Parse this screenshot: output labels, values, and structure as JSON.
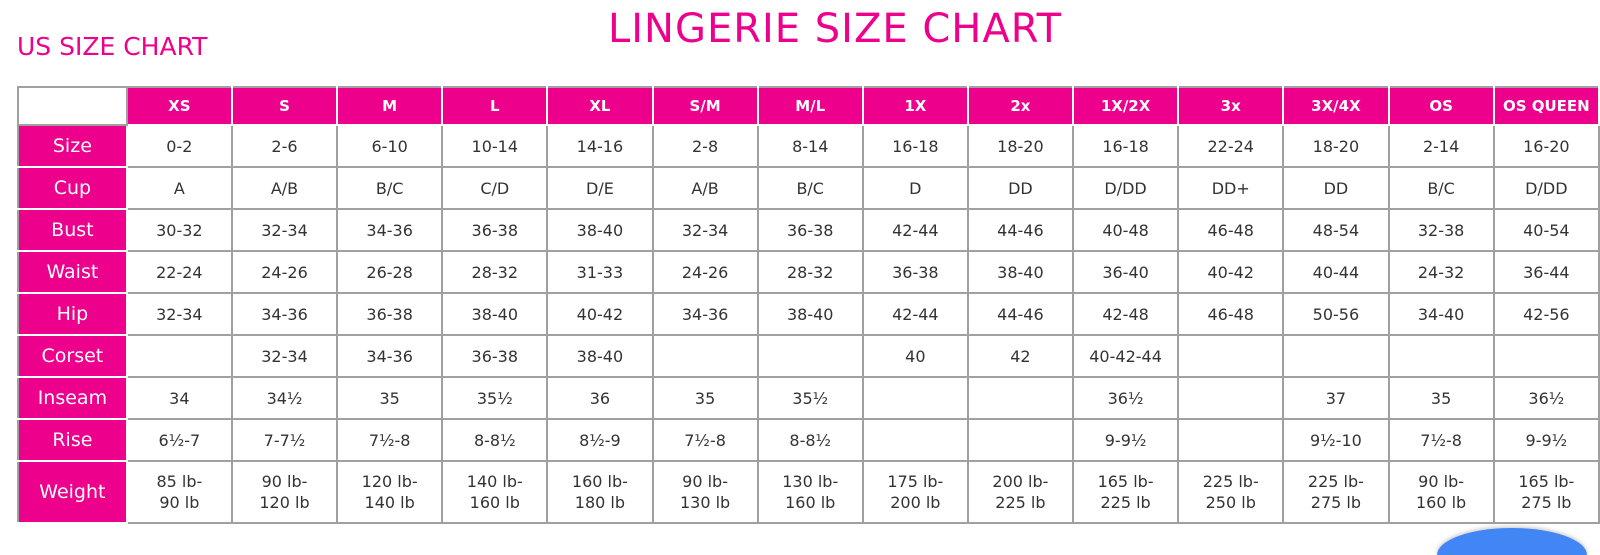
{
  "title": "LINGERIE SIZE CHART",
  "subtitle": "US SIZE CHART",
  "accent_color": "#ec008c",
  "columns": [
    "XS",
    "S",
    "M",
    "L",
    "XL",
    "S/M",
    "M/L",
    "1X",
    "2x",
    "1X/2X",
    "3x",
    "3X/4X",
    "OS",
    "OS QUEEN"
  ],
  "rows": [
    {
      "label": "Size",
      "values": [
        "0-2",
        "2-6",
        "6-10",
        "10-14",
        "14-16",
        "2-8",
        "8-14",
        "16-18",
        "18-20",
        "16-18",
        "22-24",
        "18-20",
        "2-14",
        "16-20"
      ]
    },
    {
      "label": "Cup",
      "values": [
        "A",
        "A/B",
        "B/C",
        "C/D",
        "D/E",
        "A/B",
        "B/C",
        "D",
        "DD",
        "D/DD",
        "DD+",
        "DD",
        "B/C",
        "D/DD"
      ]
    },
    {
      "label": "Bust",
      "values": [
        "30-32",
        "32-34",
        "34-36",
        "36-38",
        "38-40",
        "32-34",
        "36-38",
        "42-44",
        "44-46",
        "40-48",
        "46-48",
        "48-54",
        "32-38",
        "40-54"
      ]
    },
    {
      "label": "Waist",
      "values": [
        "22-24",
        "24-26",
        "26-28",
        "28-32",
        "31-33",
        "24-26",
        "28-32",
        "36-38",
        "38-40",
        "36-40",
        "40-42",
        "40-44",
        "24-32",
        "36-44"
      ]
    },
    {
      "label": "Hip",
      "values": [
        "32-34",
        "34-36",
        "36-38",
        "38-40",
        "40-42",
        "34-36",
        "38-40",
        "42-44",
        "44-46",
        "42-48",
        "46-48",
        "50-56",
        "34-40",
        "42-56"
      ]
    },
    {
      "label": "Corset",
      "values": [
        "",
        "32-34",
        "34-36",
        "36-38",
        "38-40",
        "",
        "",
        "40",
        "42",
        "40-42-44",
        "",
        "",
        "",
        ""
      ]
    },
    {
      "label": "Inseam",
      "values": [
        "34",
        "34½",
        "35",
        "35½",
        "36",
        "35",
        "35½",
        "",
        "",
        "36½",
        "",
        "37",
        "35",
        "36½"
      ]
    },
    {
      "label": "Rise",
      "values": [
        "6½-7",
        "7-7½",
        "7½-8",
        "8-8½",
        "8½-9",
        "7½-8",
        "8-8½",
        "",
        "",
        "9-9½",
        "",
        "9½-10",
        "7½-8",
        "9-9½"
      ]
    },
    {
      "label": "Weight",
      "values": [
        [
          "85 lb-",
          "90 lb"
        ],
        [
          "90 lb-",
          "120 lb"
        ],
        [
          "120 lb-",
          "140 lb"
        ],
        [
          "140 lb-",
          "160 lb"
        ],
        [
          "160 lb-",
          "180 lb"
        ],
        [
          "90 lb-",
          "130 lb"
        ],
        [
          "130 lb-",
          "160 lb"
        ],
        [
          "175 lb-",
          "200 lb"
        ],
        [
          "200 lb-",
          "225 lb"
        ],
        [
          "165 lb-",
          "225 lb"
        ],
        [
          "225 lb-",
          "250 lb"
        ],
        [
          "225 lb-",
          "275 lb"
        ],
        [
          "90 lb-",
          "160 lb"
        ],
        [
          "165 lb-",
          "275 lb"
        ]
      ]
    }
  ]
}
